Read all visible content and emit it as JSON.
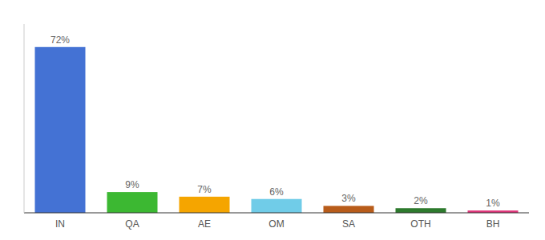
{
  "chart_data": {
    "type": "bar",
    "categories": [
      "IN",
      "QA",
      "AE",
      "OM",
      "SA",
      "OTH",
      "BH"
    ],
    "values": [
      72,
      9,
      7,
      6,
      3,
      2,
      1
    ],
    "value_labels": [
      "72%",
      "9%",
      "7%",
      "6%",
      "3%",
      "2%",
      "1%"
    ],
    "colors": [
      "#4472d4",
      "#3cb832",
      "#f5a500",
      "#70cce8",
      "#b85c1a",
      "#2d7a2d",
      "#e0357a"
    ],
    "ylim": [
      0,
      82
    ],
    "data_labels": true,
    "tick_labels": "x",
    "grid": false
  }
}
